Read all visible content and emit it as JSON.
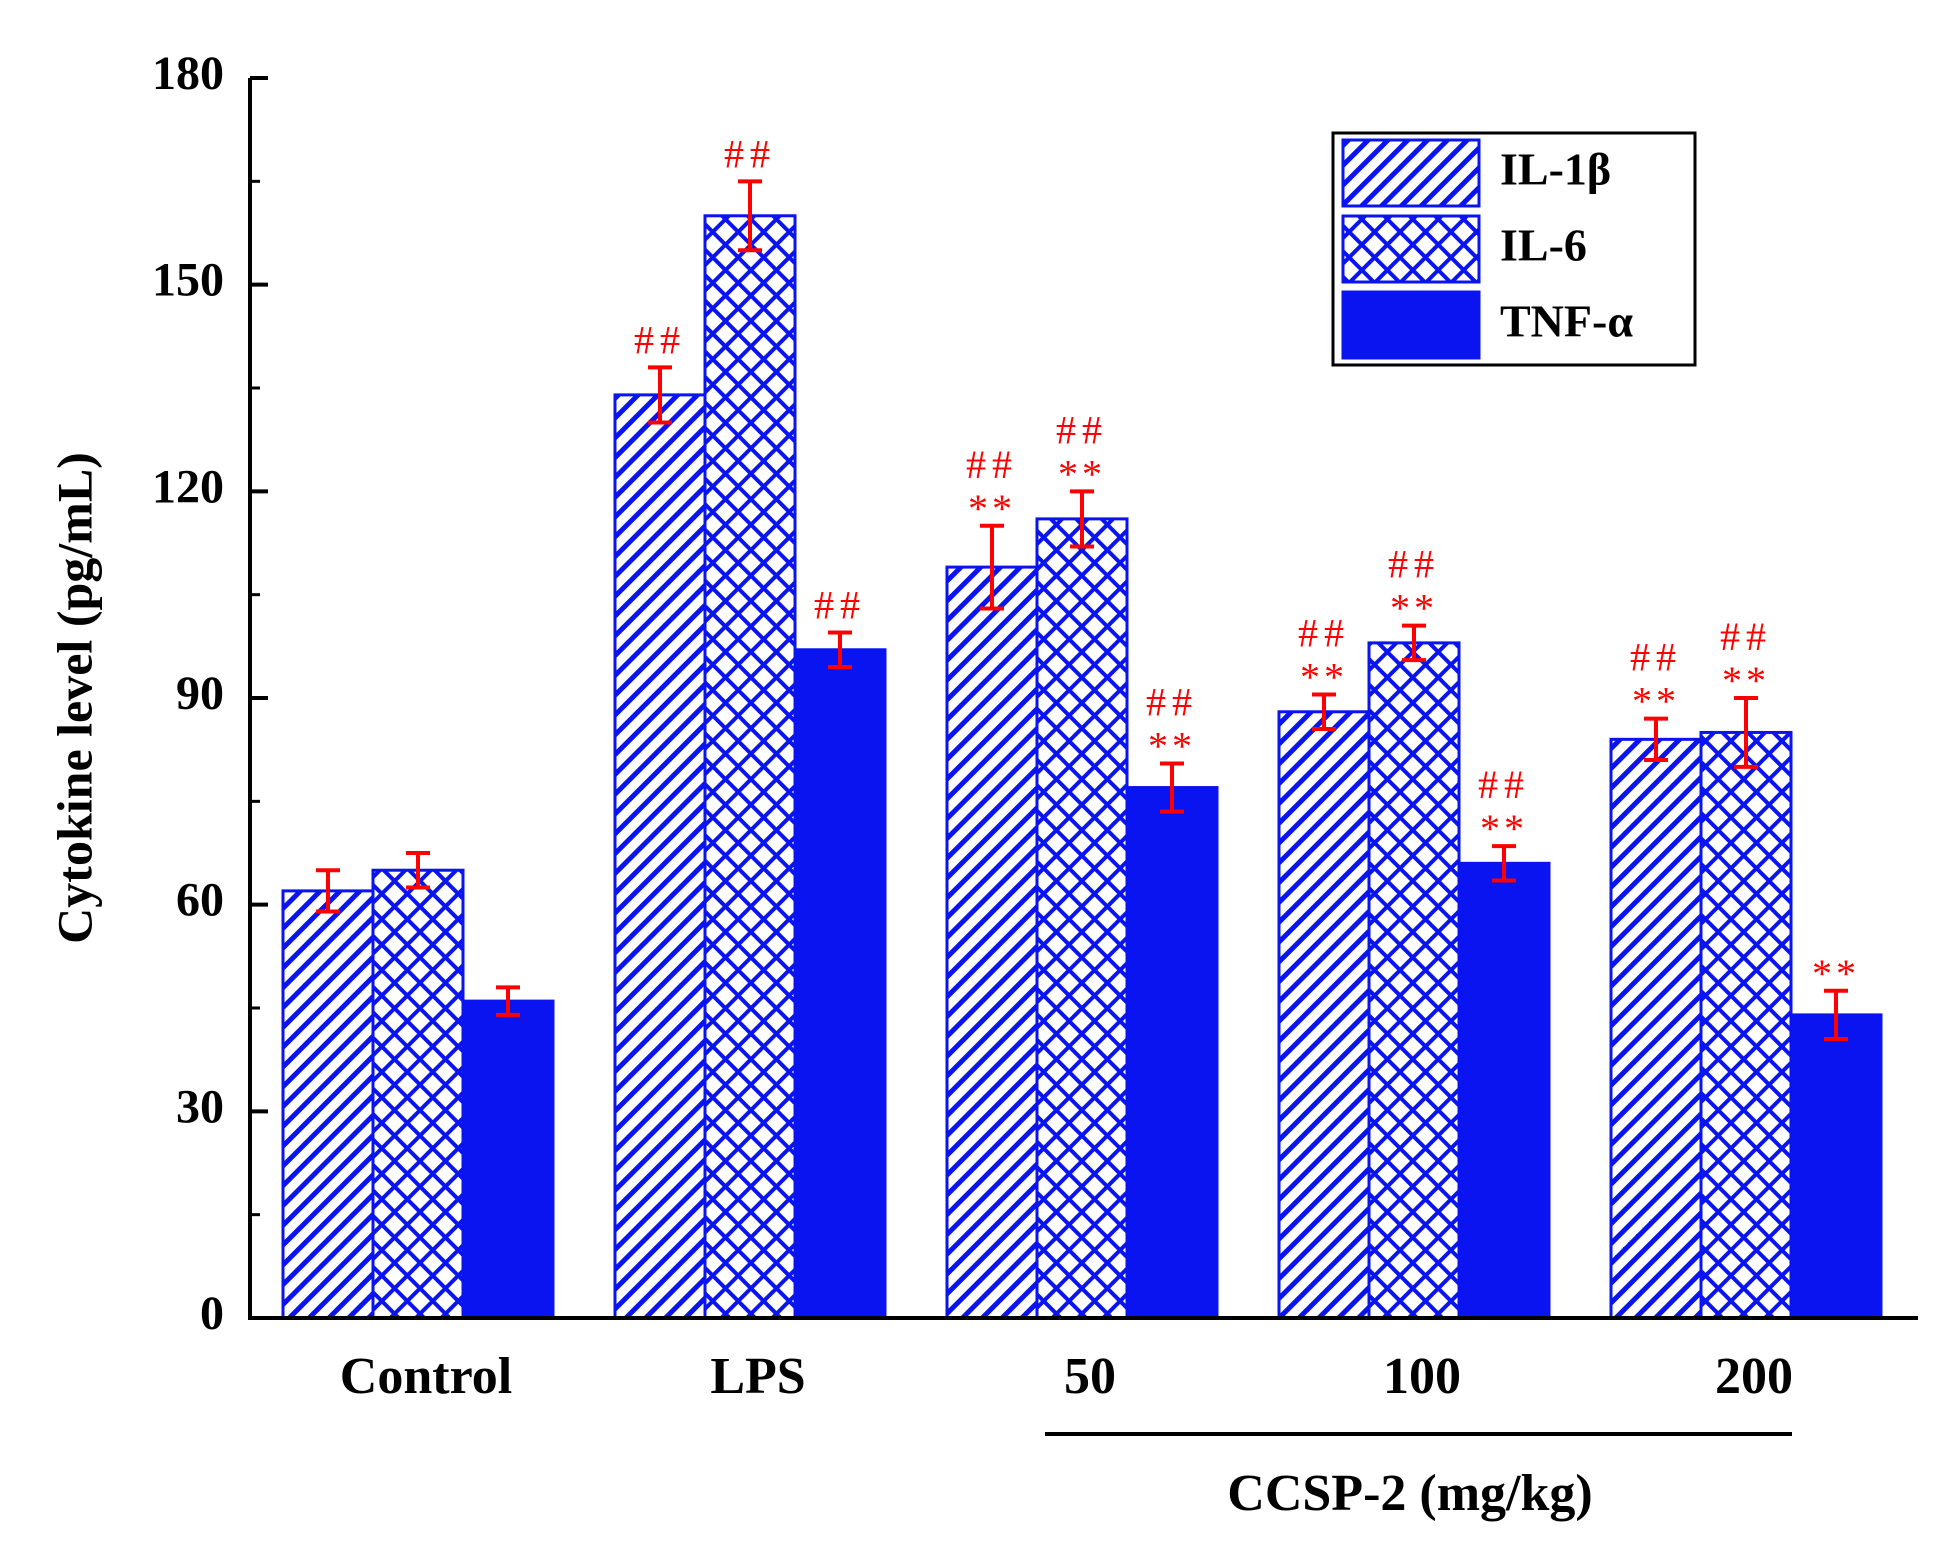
{
  "chart_data": {
    "type": "bar",
    "title": "",
    "xlabel": "",
    "ylabel": "Cytokine level (pg/mL)",
    "ylim": [
      0,
      180
    ],
    "yticks": [
      0,
      30,
      60,
      90,
      120,
      150,
      180
    ],
    "categories": [
      "Control",
      "LPS",
      "50",
      "100",
      "200"
    ],
    "group_label": "CCSP-2 (mg/kg)",
    "group_categories": [
      "50",
      "100",
      "200"
    ],
    "legend_position": "top-right",
    "series": [
      {
        "name": "IL-1β",
        "pattern": "diagonal-hatch",
        "values": [
          62,
          134,
          109,
          88,
          84
        ],
        "errors": [
          3,
          4,
          6,
          2.5,
          3
        ],
        "annotations": [
          [
            "",
            ""
          ],
          [
            "##",
            ""
          ],
          [
            "##",
            "**"
          ],
          [
            "##",
            "**"
          ],
          [
            "##",
            "**"
          ]
        ]
      },
      {
        "name": "IL-6",
        "pattern": "cross-hatch",
        "values": [
          65,
          160,
          116,
          98,
          85
        ],
        "errors": [
          2.5,
          5,
          4,
          2.5,
          5
        ],
        "annotations": [
          [
            "",
            ""
          ],
          [
            "##",
            ""
          ],
          [
            "##",
            "**"
          ],
          [
            "##",
            "**"
          ],
          [
            "##",
            "**"
          ]
        ]
      },
      {
        "name": "TNF-α",
        "pattern": "solid",
        "values": [
          46,
          97,
          77,
          66,
          44
        ],
        "errors": [
          2,
          2.5,
          3.5,
          2.5,
          3.5
        ],
        "annotations": [
          [
            "",
            ""
          ],
          [
            "##",
            ""
          ],
          [
            "##",
            "**"
          ],
          [
            "##",
            "**"
          ],
          [
            "",
            "**"
          ]
        ]
      }
    ]
  },
  "colors": {
    "bar": "#0a14f0",
    "error": "#ff0000",
    "annotation": "#ff0000",
    "axis": "#000000"
  }
}
